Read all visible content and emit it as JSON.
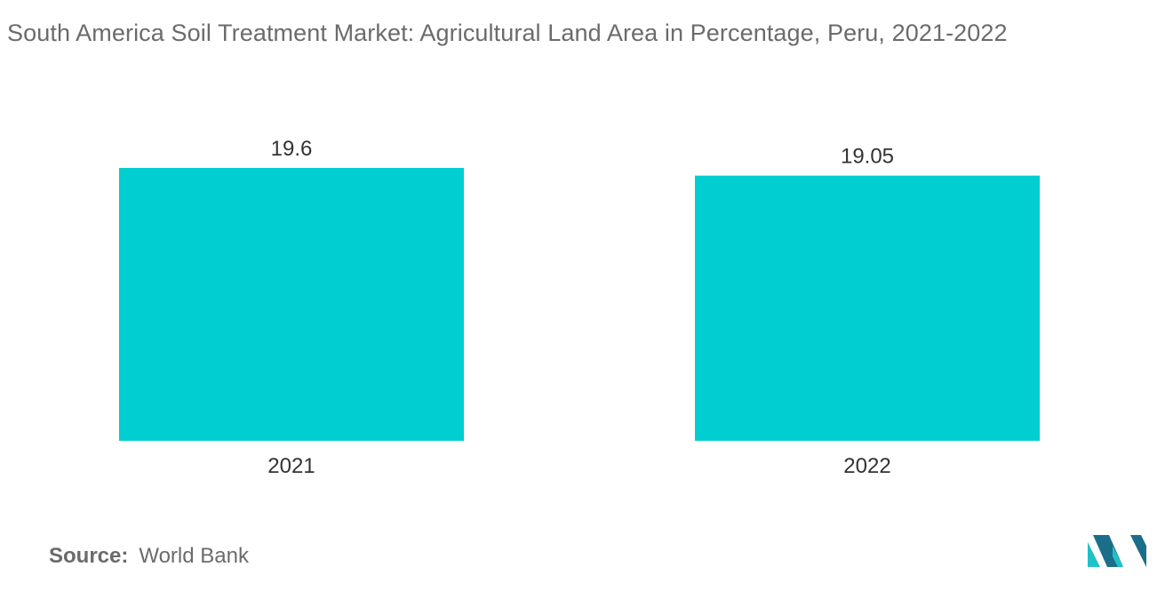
{
  "title": "South America Soil Treatment Market: Agricultural Land Area in Percentage, Peru, 2021-2022",
  "source": {
    "label": "Source:",
    "value": "World Bank"
  },
  "colors": {
    "bar": "#00CED1",
    "text": "#6b6b6b",
    "label_text": "#333333",
    "logo_dark": "#1b6e8a",
    "logo_light": "#1fc2c8"
  },
  "logo": {
    "icon": "mordor-intelligence-logo-icon"
  },
  "chart_data": {
    "type": "bar",
    "categories": [
      "2021",
      "2022"
    ],
    "values": [
      19.6,
      19.05
    ],
    "data_labels": [
      "19.6",
      "19.05"
    ],
    "title": "South America Soil Treatment Market: Agricultural Land Area in Percentage, Peru, 2021-2022",
    "xlabel": "",
    "ylabel": "",
    "ylim": [
      0,
      19.6
    ],
    "grid": false,
    "legend": "none"
  }
}
